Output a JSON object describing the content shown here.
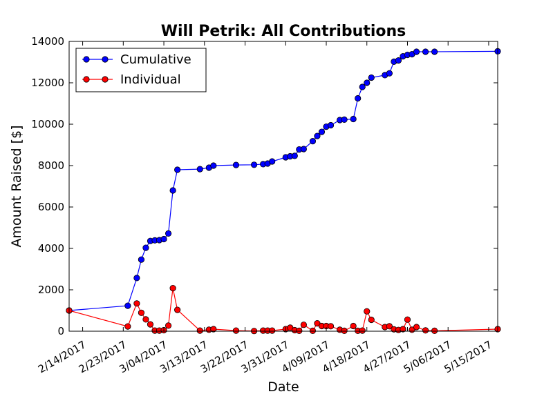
{
  "chart_data": {
    "type": "line",
    "title": "Will Petrik: All Contributions",
    "xlabel": "Date",
    "ylabel": "Amount Raised [$]",
    "ylim": [
      0,
      14000
    ],
    "xlim": [
      "2017-02-11",
      "2017-05-17"
    ],
    "grid": false,
    "legend_position": "top-left",
    "x_ticks": [
      {
        "date": "2017-02-14",
        "label": "2/14/2017"
      },
      {
        "date": "2017-02-23",
        "label": "2/23/2017"
      },
      {
        "date": "2017-03-04",
        "label": "3/04/2017"
      },
      {
        "date": "2017-03-13",
        "label": "3/13/2017"
      },
      {
        "date": "2017-03-22",
        "label": "3/22/2017"
      },
      {
        "date": "2017-03-31",
        "label": "3/31/2017"
      },
      {
        "date": "2017-04-09",
        "label": "4/09/2017"
      },
      {
        "date": "2017-04-18",
        "label": "4/18/2017"
      },
      {
        "date": "2017-04-27",
        "label": "4/27/2017"
      },
      {
        "date": "2017-05-06",
        "label": "5/06/2017"
      },
      {
        "date": "2017-05-15",
        "label": "5/15/2017"
      }
    ],
    "y_ticks": [
      0,
      2000,
      4000,
      6000,
      8000,
      10000,
      12000,
      14000
    ],
    "x": [
      "2017-02-11",
      "2017-02-24",
      "2017-02-26",
      "2017-02-27",
      "2017-02-28",
      "2017-03-01",
      "2017-03-02",
      "2017-03-03",
      "2017-03-04",
      "2017-03-05",
      "2017-03-06",
      "2017-03-07",
      "2017-03-12",
      "2017-03-14",
      "2017-03-15",
      "2017-03-20",
      "2017-03-24",
      "2017-03-26",
      "2017-03-27",
      "2017-03-28",
      "2017-03-31",
      "2017-04-01",
      "2017-04-02",
      "2017-04-03",
      "2017-04-04",
      "2017-04-06",
      "2017-04-07",
      "2017-04-08",
      "2017-04-09",
      "2017-04-10",
      "2017-04-12",
      "2017-04-13",
      "2017-04-15",
      "2017-04-16",
      "2017-04-17",
      "2017-04-18",
      "2017-04-19",
      "2017-04-22",
      "2017-04-23",
      "2017-04-24",
      "2017-04-25",
      "2017-04-26",
      "2017-04-27",
      "2017-04-28",
      "2017-04-29",
      "2017-05-01",
      "2017-05-03",
      "2017-05-17"
    ],
    "series": [
      {
        "name": "Cumulative",
        "color": "#0000ff",
        "values": [
          1000,
          1230,
          2570,
          3460,
          4030,
          4360,
          4390,
          4400,
          4450,
          4720,
          6800,
          7800,
          7830,
          7900,
          8000,
          8030,
          8040,
          8070,
          8100,
          8200,
          8400,
          8450,
          8470,
          8780,
          8800,
          9180,
          9430,
          9630,
          9880,
          9950,
          10200,
          10220,
          10250,
          11250,
          11800,
          12000,
          12250,
          12370,
          12460,
          13020,
          13080,
          13280,
          13350,
          13380,
          13500,
          13500,
          13500,
          13520
        ]
      },
      {
        "name": "Individual",
        "color": "#ff0000",
        "values": [
          1000,
          230,
          1340,
          890,
          570,
          330,
          30,
          30,
          50,
          270,
          2080,
          1030,
          30,
          70,
          100,
          30,
          10,
          30,
          30,
          30,
          100,
          170,
          50,
          20,
          310,
          20,
          380,
          250,
          250,
          240,
          70,
          20,
          250,
          20,
          30,
          960,
          550,
          200,
          240,
          90,
          60,
          100,
          560,
          70,
          200,
          40,
          20,
          100
        ]
      }
    ]
  }
}
